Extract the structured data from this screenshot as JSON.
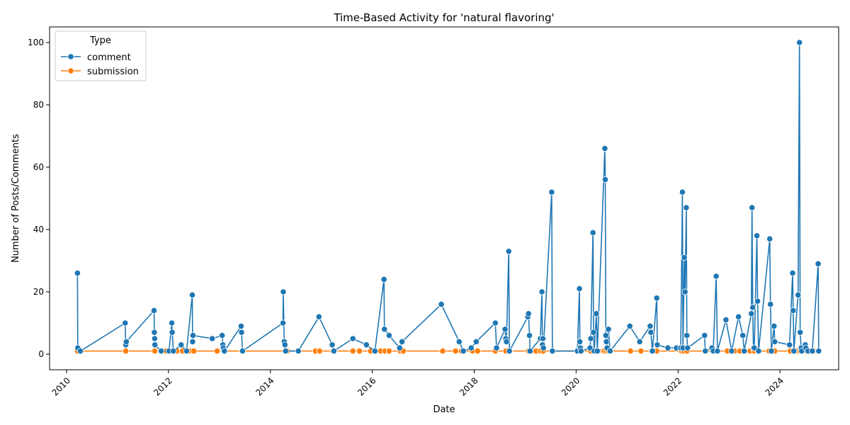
{
  "chart_data": {
    "type": "line",
    "title": "Time-Based Activity for 'natural flavoring'",
    "xlabel": "Date",
    "ylabel": "Number of Posts/Comments",
    "xlim": [
      "2009-09-01",
      "2025-02-25"
    ],
    "ylim": [
      -5,
      105
    ],
    "x_ticks": [
      "2010",
      "2012",
      "2014",
      "2016",
      "2018",
      "2020",
      "2022",
      "2024"
    ],
    "y_ticks": [
      0,
      20,
      40,
      60,
      80,
      100
    ],
    "grid": false,
    "legend": {
      "title": "Type",
      "position": "top-left"
    },
    "series": [
      {
        "name": "comment",
        "color": "#1f77b4",
        "points": [
          [
            "2010-03-20",
            26
          ],
          [
            "2010-03-22",
            2
          ],
          [
            "2010-04-10",
            1
          ],
          [
            "2011-02-25",
            10
          ],
          [
            "2011-03-01",
            3
          ],
          [
            "2011-03-05",
            4
          ],
          [
            "2011-09-20",
            14
          ],
          [
            "2011-09-22",
            7
          ],
          [
            "2011-09-24",
            5
          ],
          [
            "2011-09-26",
            3
          ],
          [
            "2011-11-10",
            1
          ],
          [
            "2012-01-05",
            1
          ],
          [
            "2012-01-25",
            10
          ],
          [
            "2012-01-28",
            7
          ],
          [
            "2012-02-05",
            1
          ],
          [
            "2012-04-01",
            3
          ],
          [
            "2012-05-10",
            1
          ],
          [
            "2012-06-20",
            19
          ],
          [
            "2012-06-22",
            4
          ],
          [
            "2012-06-25",
            6
          ],
          [
            "2012-11-10",
            5
          ],
          [
            "2013-01-20",
            6
          ],
          [
            "2013-01-25",
            3
          ],
          [
            "2013-01-28",
            2
          ],
          [
            "2013-02-05",
            1
          ],
          [
            "2013-06-05",
            9
          ],
          [
            "2013-06-08",
            7
          ],
          [
            "2013-06-15",
            1
          ],
          [
            "2014-04-01",
            10
          ],
          [
            "2014-04-03",
            20
          ],
          [
            "2014-04-10",
            4
          ],
          [
            "2014-04-15",
            3
          ],
          [
            "2014-04-20",
            1
          ],
          [
            "2014-07-20",
            1
          ],
          [
            "2014-12-15",
            12
          ],
          [
            "2015-03-20",
            3
          ],
          [
            "2015-04-01",
            1
          ],
          [
            "2015-08-15",
            5
          ],
          [
            "2015-11-20",
            3
          ],
          [
            "2016-01-20",
            1
          ],
          [
            "2016-03-25",
            24
          ],
          [
            "2016-03-28",
            8
          ],
          [
            "2016-05-01",
            6
          ],
          [
            "2016-07-15",
            2
          ],
          [
            "2016-08-01",
            4
          ],
          [
            "2017-05-10",
            16
          ],
          [
            "2017-09-15",
            4
          ],
          [
            "2017-10-15",
            1
          ],
          [
            "2017-12-10",
            2
          ],
          [
            "2018-01-15",
            4
          ],
          [
            "2018-06-01",
            10
          ],
          [
            "2018-06-10",
            2
          ],
          [
            "2018-08-10",
            8
          ],
          [
            "2018-08-15",
            5
          ],
          [
            "2018-08-20",
            4
          ],
          [
            "2018-09-05",
            33
          ],
          [
            "2018-09-10",
            1
          ],
          [
            "2019-01-20",
            12
          ],
          [
            "2019-01-25",
            13
          ],
          [
            "2019-02-01",
            6
          ],
          [
            "2019-02-05",
            1
          ],
          [
            "2019-04-20",
            5
          ],
          [
            "2019-05-01",
            20
          ],
          [
            "2019-05-05",
            3
          ],
          [
            "2019-05-08",
            5
          ],
          [
            "2019-05-12",
            2
          ],
          [
            "2019-07-10",
            52
          ],
          [
            "2019-07-15",
            1
          ],
          [
            "2020-01-10",
            1
          ],
          [
            "2020-01-25",
            21
          ],
          [
            "2020-01-28",
            4
          ],
          [
            "2020-02-01",
            2
          ],
          [
            "2020-02-05",
            1
          ],
          [
            "2020-04-10",
            2
          ],
          [
            "2020-04-15",
            5
          ],
          [
            "2020-05-01",
            39
          ],
          [
            "2020-05-05",
            7
          ],
          [
            "2020-05-10",
            1
          ],
          [
            "2020-05-25",
            13
          ],
          [
            "2020-06-01",
            1
          ],
          [
            "2020-07-25",
            66
          ],
          [
            "2020-07-28",
            56
          ],
          [
            "2020-08-01",
            6
          ],
          [
            "2020-08-05",
            4
          ],
          [
            "2020-08-10",
            2
          ],
          [
            "2020-08-20",
            8
          ],
          [
            "2020-09-01",
            1
          ],
          [
            "2021-01-20",
            9
          ],
          [
            "2021-04-01",
            4
          ],
          [
            "2021-06-15",
            9
          ],
          [
            "2021-06-20",
            7
          ],
          [
            "2021-07-01",
            1
          ],
          [
            "2021-08-01",
            18
          ],
          [
            "2021-08-05",
            3
          ],
          [
            "2021-10-20",
            2
          ],
          [
            "2021-12-20",
            2
          ],
          [
            "2022-01-20",
            2
          ],
          [
            "2022-02-01",
            52
          ],
          [
            "2022-02-05",
            2
          ],
          [
            "2022-02-15",
            31
          ],
          [
            "2022-02-20",
            20
          ],
          [
            "2022-03-01",
            47
          ],
          [
            "2022-03-05",
            6
          ],
          [
            "2022-03-10",
            2
          ],
          [
            "2022-07-10",
            6
          ],
          [
            "2022-07-15",
            1
          ],
          [
            "2022-09-01",
            2
          ],
          [
            "2022-09-10",
            1
          ],
          [
            "2022-10-01",
            25
          ],
          [
            "2022-10-10",
            1
          ],
          [
            "2022-12-10",
            11
          ],
          [
            "2023-01-20",
            1
          ],
          [
            "2023-03-10",
            12
          ],
          [
            "2023-04-10",
            6
          ],
          [
            "2023-04-20",
            1
          ],
          [
            "2023-06-10",
            13
          ],
          [
            "2023-06-15",
            47
          ],
          [
            "2023-06-20",
            15
          ],
          [
            "2023-06-25",
            2
          ],
          [
            "2023-07-01",
            2
          ],
          [
            "2023-07-20",
            38
          ],
          [
            "2023-07-25",
            17
          ],
          [
            "2023-08-01",
            1
          ],
          [
            "2023-10-20",
            37
          ],
          [
            "2023-10-25",
            16
          ],
          [
            "2023-11-01",
            1
          ],
          [
            "2023-11-20",
            9
          ],
          [
            "2023-11-25",
            4
          ],
          [
            "2024-03-10",
            3
          ],
          [
            "2024-04-01",
            26
          ],
          [
            "2024-04-05",
            14
          ],
          [
            "2024-04-10",
            1
          ],
          [
            "2024-05-10",
            19
          ],
          [
            "2024-05-20",
            100
          ],
          [
            "2024-05-25",
            7
          ],
          [
            "2024-06-01",
            2
          ],
          [
            "2024-06-05",
            1
          ],
          [
            "2024-07-01",
            3
          ],
          [
            "2024-07-05",
            2
          ],
          [
            "2024-07-20",
            1
          ],
          [
            "2024-08-20",
            1
          ],
          [
            "2024-10-01",
            29
          ],
          [
            "2024-10-05",
            1
          ]
        ]
      },
      {
        "name": "submission",
        "color": "#ff7f0e",
        "points": [
          [
            "2010-03-20",
            1
          ],
          [
            "2011-03-01",
            1
          ],
          [
            "2011-09-25",
            1
          ],
          [
            "2011-12-15",
            1
          ],
          [
            "2012-01-25",
            1
          ],
          [
            "2012-03-01",
            1
          ],
          [
            "2012-04-10",
            1
          ],
          [
            "2012-06-01",
            1
          ],
          [
            "2012-07-01",
            1
          ],
          [
            "2012-12-15",
            1
          ],
          [
            "2013-02-01",
            1
          ],
          [
            "2013-06-15",
            1
          ],
          [
            "2014-04-20",
            1
          ],
          [
            "2014-05-01",
            1
          ],
          [
            "2014-11-20",
            1
          ],
          [
            "2014-12-20",
            1
          ],
          [
            "2015-03-25",
            1
          ],
          [
            "2015-04-05",
            1
          ],
          [
            "2015-08-15",
            1
          ],
          [
            "2015-10-01",
            1
          ],
          [
            "2015-12-20",
            1
          ],
          [
            "2016-03-01",
            1
          ],
          [
            "2016-04-01",
            1
          ],
          [
            "2016-05-01",
            1
          ],
          [
            "2016-07-20",
            1
          ],
          [
            "2016-08-10",
            1
          ],
          [
            "2017-05-20",
            1
          ],
          [
            "2017-08-20",
            1
          ],
          [
            "2017-10-01",
            1
          ],
          [
            "2017-12-20",
            1
          ],
          [
            "2018-01-25",
            1
          ],
          [
            "2018-06-01",
            1
          ],
          [
            "2018-08-15",
            1
          ],
          [
            "2018-09-15",
            1
          ],
          [
            "2019-01-25",
            1
          ],
          [
            "2019-02-15",
            1
          ],
          [
            "2019-03-20",
            1
          ],
          [
            "2019-04-20",
            1
          ],
          [
            "2019-05-10",
            1
          ],
          [
            "2019-07-20",
            1
          ],
          [
            "2020-01-20",
            1
          ],
          [
            "2020-02-10",
            1
          ],
          [
            "2020-04-15",
            1
          ],
          [
            "2020-05-10",
            1
          ],
          [
            "2020-06-10",
            1
          ],
          [
            "2020-07-20",
            1
          ],
          [
            "2020-08-05",
            1
          ],
          [
            "2020-08-20",
            1
          ],
          [
            "2021-01-25",
            1
          ],
          [
            "2021-04-10",
            1
          ],
          [
            "2021-06-25",
            1
          ],
          [
            "2021-08-01",
            1
          ],
          [
            "2022-01-25",
            1
          ],
          [
            "2022-02-10",
            1
          ],
          [
            "2022-03-05",
            1
          ],
          [
            "2022-07-15",
            1
          ],
          [
            "2022-10-10",
            1
          ],
          [
            "2022-12-20",
            1
          ],
          [
            "2023-02-10",
            1
          ],
          [
            "2023-03-20",
            1
          ],
          [
            "2023-04-25",
            1
          ],
          [
            "2023-06-01",
            1
          ],
          [
            "2023-06-30",
            1
          ],
          [
            "2023-07-30",
            1
          ],
          [
            "2023-10-15",
            1
          ],
          [
            "2023-11-25",
            1
          ],
          [
            "2024-03-15",
            1
          ],
          [
            "2024-04-15",
            1
          ],
          [
            "2024-05-01",
            1
          ],
          [
            "2024-05-25",
            1
          ],
          [
            "2024-06-10",
            1
          ],
          [
            "2024-07-10",
            1
          ],
          [
            "2024-08-10",
            1
          ],
          [
            "2024-09-01",
            1
          ],
          [
            "2024-10-01",
            1
          ]
        ]
      }
    ]
  }
}
